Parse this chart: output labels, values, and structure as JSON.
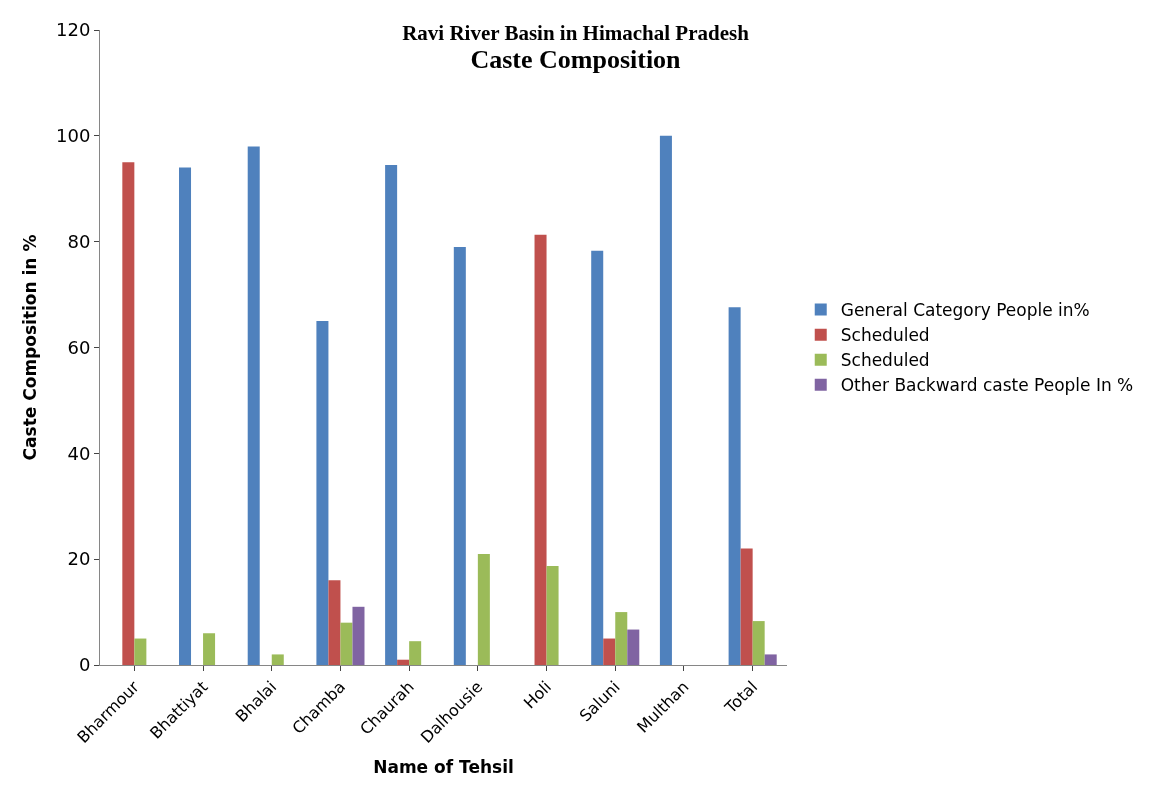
{
  "chart_data": {
    "type": "bar",
    "title": "Ravi River Basin in Himachal Pradesh",
    "subtitle": "Caste Composition",
    "xlabel": "Name of Tehsil",
    "ylabel": "Caste Composition in %",
    "categories": [
      "Bharmour",
      "Bhattiyat",
      "Bhalai",
      "Chamba",
      "Chaurah",
      "Dalhousie",
      "Holi",
      "Saluni",
      "Multhan",
      "Total"
    ],
    "series": [
      {
        "name": "General Category People in%",
        "color": "#4f81bd",
        "values": [
          0,
          94,
          98,
          65,
          94.5,
          79,
          0,
          78.3,
          100,
          67.6
        ]
      },
      {
        "name": "Scheduled",
        "color": "#c0504d",
        "values": [
          95,
          0,
          0,
          16,
          1,
          0,
          81.3,
          5,
          0,
          22
        ]
      },
      {
        "name": "Scheduled",
        "color": "#9bbb59",
        "values": [
          5,
          6,
          2,
          8,
          4.5,
          21,
          18.7,
          10,
          0,
          8.3
        ]
      },
      {
        "name": "Other Backward caste People In %",
        "color": "#8064a2",
        "values": [
          0,
          0,
          0,
          11,
          0,
          0,
          0,
          6.7,
          0,
          2
        ]
      }
    ],
    "ylim": [
      0,
      120
    ],
    "yticks": [
      0,
      20,
      40,
      60,
      80,
      100,
      120
    ],
    "legend": "right"
  }
}
